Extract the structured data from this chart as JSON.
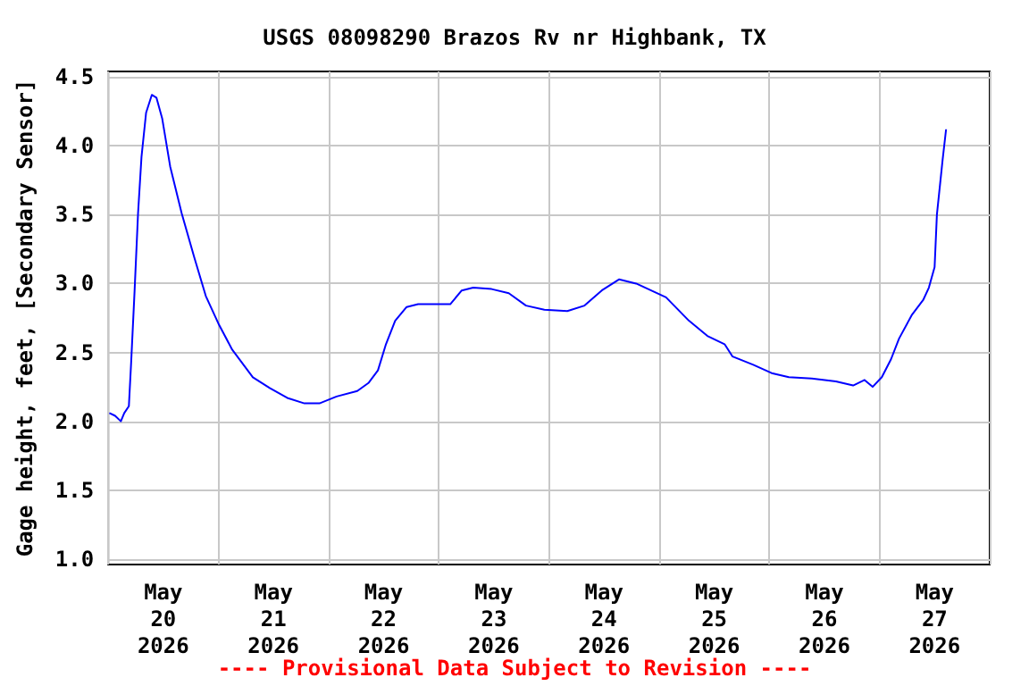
{
  "chart_data": {
    "type": "line",
    "title": "USGS 08098290 Brazos Rv nr Highbank, TX",
    "ylabel": "Gage height, feet, [Secondary Sensor]",
    "annotations": [
      "---- Provisional Data Subject to Revision ----"
    ],
    "x": [
      "2026-05-20T00:15",
      "2026-05-20T01:30",
      "2026-05-20T02:45",
      "2026-05-20T03:30",
      "2026-05-20T04:30",
      "2026-05-20T05:00",
      "2026-05-20T05:45",
      "2026-05-20T06:30",
      "2026-05-20T07:15",
      "2026-05-20T08:15",
      "2026-05-20T09:30",
      "2026-05-20T10:30",
      "2026-05-20T11:45",
      "2026-05-20T13:30",
      "2026-05-20T16:00",
      "2026-05-20T18:45",
      "2026-05-20T21:15",
      "2026-05-21T00:00",
      "2026-05-21T03:00",
      "2026-05-21T07:30",
      "2026-05-21T11:15",
      "2026-05-21T15:00",
      "2026-05-21T18:45",
      "2026-05-21T22:00",
      "2026-05-22T01:45",
      "2026-05-22T06:15",
      "2026-05-22T08:45",
      "2026-05-22T10:45",
      "2026-05-22T12:30",
      "2026-05-22T14:30",
      "2026-05-22T17:00",
      "2026-05-22T19:30",
      "2026-05-23T02:30",
      "2026-05-23T05:00",
      "2026-05-23T07:30",
      "2026-05-23T11:30",
      "2026-05-23T15:15",
      "2026-05-23T19:00",
      "2026-05-23T23:00",
      "2026-05-24T04:00",
      "2026-05-24T07:45",
      "2026-05-24T11:30",
      "2026-05-24T15:15",
      "2026-05-24T19:00",
      "2026-05-25T01:30",
      "2026-05-25T06:30",
      "2026-05-25T10:30",
      "2026-05-25T14:15",
      "2026-05-25T16:00",
      "2026-05-25T20:30",
      "2026-05-26T00:30",
      "2026-05-26T04:15",
      "2026-05-26T09:15",
      "2026-05-26T14:30",
      "2026-05-26T18:15",
      "2026-05-26T20:45",
      "2026-05-26T22:30",
      "2026-05-27T00:30",
      "2026-05-27T02:30",
      "2026-05-27T04:15",
      "2026-05-27T07:00",
      "2026-05-27T09:30",
      "2026-05-27T10:45",
      "2026-05-27T12:00",
      "2026-05-27T12:30",
      "2026-05-27T13:45",
      "2026-05-27T14:30"
    ],
    "series": [
      {
        "color": "#0000ff",
        "values": [
          2.06,
          2.04,
          2.0,
          2.06,
          2.11,
          2.43,
          2.95,
          3.51,
          3.92,
          4.24,
          4.37,
          4.35,
          4.2,
          3.85,
          3.51,
          3.19,
          2.91,
          2.71,
          2.52,
          2.32,
          2.24,
          2.17,
          2.13,
          2.13,
          2.18,
          2.22,
          2.28,
          2.37,
          2.56,
          2.73,
          2.83,
          2.85,
          2.85,
          2.95,
          2.97,
          2.96,
          2.93,
          2.84,
          2.81,
          2.8,
          2.84,
          2.95,
          3.03,
          3.0,
          2.9,
          2.73,
          2.62,
          2.56,
          2.47,
          2.41,
          2.35,
          2.32,
          2.31,
          2.29,
          2.26,
          2.3,
          2.25,
          2.32,
          2.45,
          2.6,
          2.77,
          2.88,
          2.97,
          3.12,
          3.5,
          3.9,
          4.12
        ]
      }
    ],
    "xlim": [
      "2026-05-20T00:00",
      "2026-05-28T00:00"
    ],
    "xticks": [
      {
        "value": "2026-05-20T00:00",
        "label": null
      },
      {
        "value": "2026-05-20T12:00",
        "label": "May\n20\n2026"
      },
      {
        "value": "2026-05-21T00:00",
        "label": null
      },
      {
        "value": "2026-05-21T12:00",
        "label": "May\n21\n2026"
      },
      {
        "value": "2026-05-22T00:00",
        "label": null
      },
      {
        "value": "2026-05-22T12:00",
        "label": "May\n22\n2026"
      },
      {
        "value": "2026-05-23T00:00",
        "label": null
      },
      {
        "value": "2026-05-23T12:00",
        "label": "May\n23\n2026"
      },
      {
        "value": "2026-05-24T00:00",
        "label": null
      },
      {
        "value": "2026-05-24T12:00",
        "label": "May\n24\n2026"
      },
      {
        "value": "2026-05-25T00:00",
        "label": null
      },
      {
        "value": "2026-05-25T12:00",
        "label": "May\n25\n2026"
      },
      {
        "value": "2026-05-26T00:00",
        "label": null
      },
      {
        "value": "2026-05-26T12:00",
        "label": "May\n26\n2026"
      },
      {
        "value": "2026-05-27T00:00",
        "label": null
      },
      {
        "value": "2026-05-27T12:00",
        "label": "May\n27\n2026"
      },
      {
        "value": "2026-05-28T00:00",
        "label": null
      }
    ],
    "ylim": [
      0.96,
      4.54
    ],
    "yticks": [
      {
        "value": 1,
        "label": "1.0"
      },
      {
        "value": 1.5,
        "label": "1.5"
      },
      {
        "value": 2,
        "label": "2.0"
      },
      {
        "value": 2.5,
        "label": "2.5"
      },
      {
        "value": 3,
        "label": "3.0"
      },
      {
        "value": 3.5,
        "label": "3.5"
      },
      {
        "value": 4,
        "label": "4.0"
      },
      {
        "value": 4.5,
        "label": "4.5"
      }
    ],
    "grid": true
  }
}
